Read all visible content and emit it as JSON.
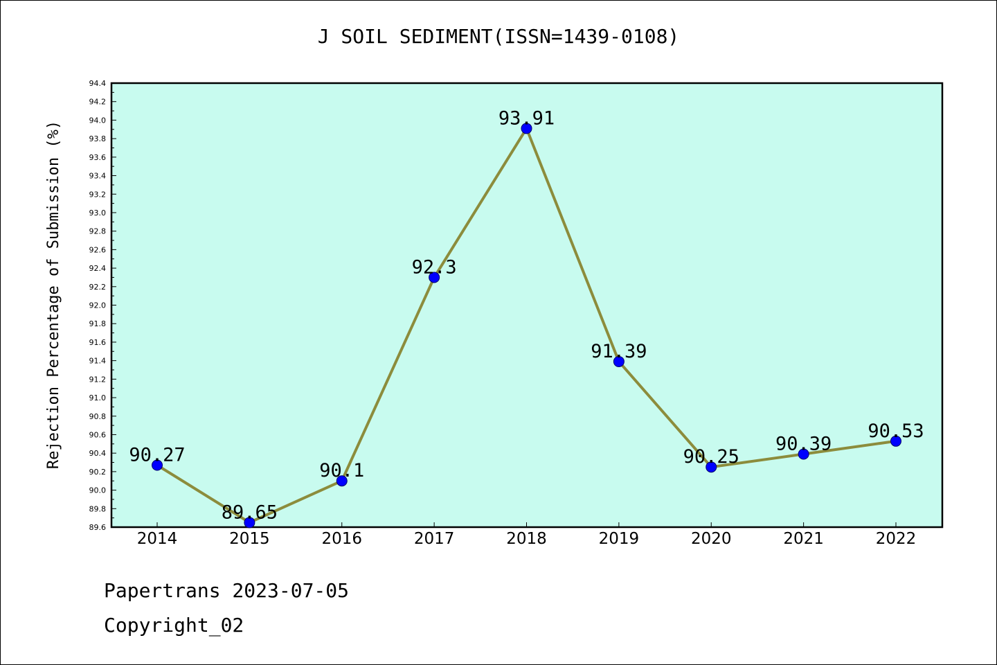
{
  "chart_data": {
    "type": "line",
    "title": "J SOIL SEDIMENT(ISSN=1439-0108)",
    "xlabel": "",
    "ylabel": "Rejection Percentage of Submission (%)",
    "categories": [
      "2014",
      "2015",
      "2016",
      "2017",
      "2018",
      "2019",
      "2020",
      "2021",
      "2022"
    ],
    "series": [
      {
        "values": [
          90.27,
          89.65,
          90.1,
          92.3,
          93.91,
          91.39,
          90.25,
          90.39,
          90.53
        ]
      }
    ],
    "data_labels": [
      "90.27",
      "89.65",
      "90.1",
      "92.3",
      "93.91",
      "91.39",
      "90.25",
      "90.39",
      "90.53"
    ],
    "ylim": [
      89.6,
      94.4
    ],
    "yticks": [
      "89.6",
      "89.8",
      "90.0",
      "90.2",
      "90.4",
      "90.6",
      "90.8",
      "91.0",
      "91.2",
      "91.4",
      "91.6",
      "91.8",
      "92.0",
      "92.2",
      "92.4",
      "92.6",
      "92.8",
      "93.0",
      "93.2",
      "93.4",
      "93.6",
      "93.8",
      "94.0",
      "94.2",
      "94.4"
    ],
    "grid": false,
    "colors": {
      "plot_background": "#c8fbef",
      "line": "#8c8c3c",
      "marker": "#0000ff",
      "axis": "#000000"
    }
  },
  "footer": {
    "source": "Papertrans 2023-07-05",
    "copyright": "Copyright_02"
  }
}
